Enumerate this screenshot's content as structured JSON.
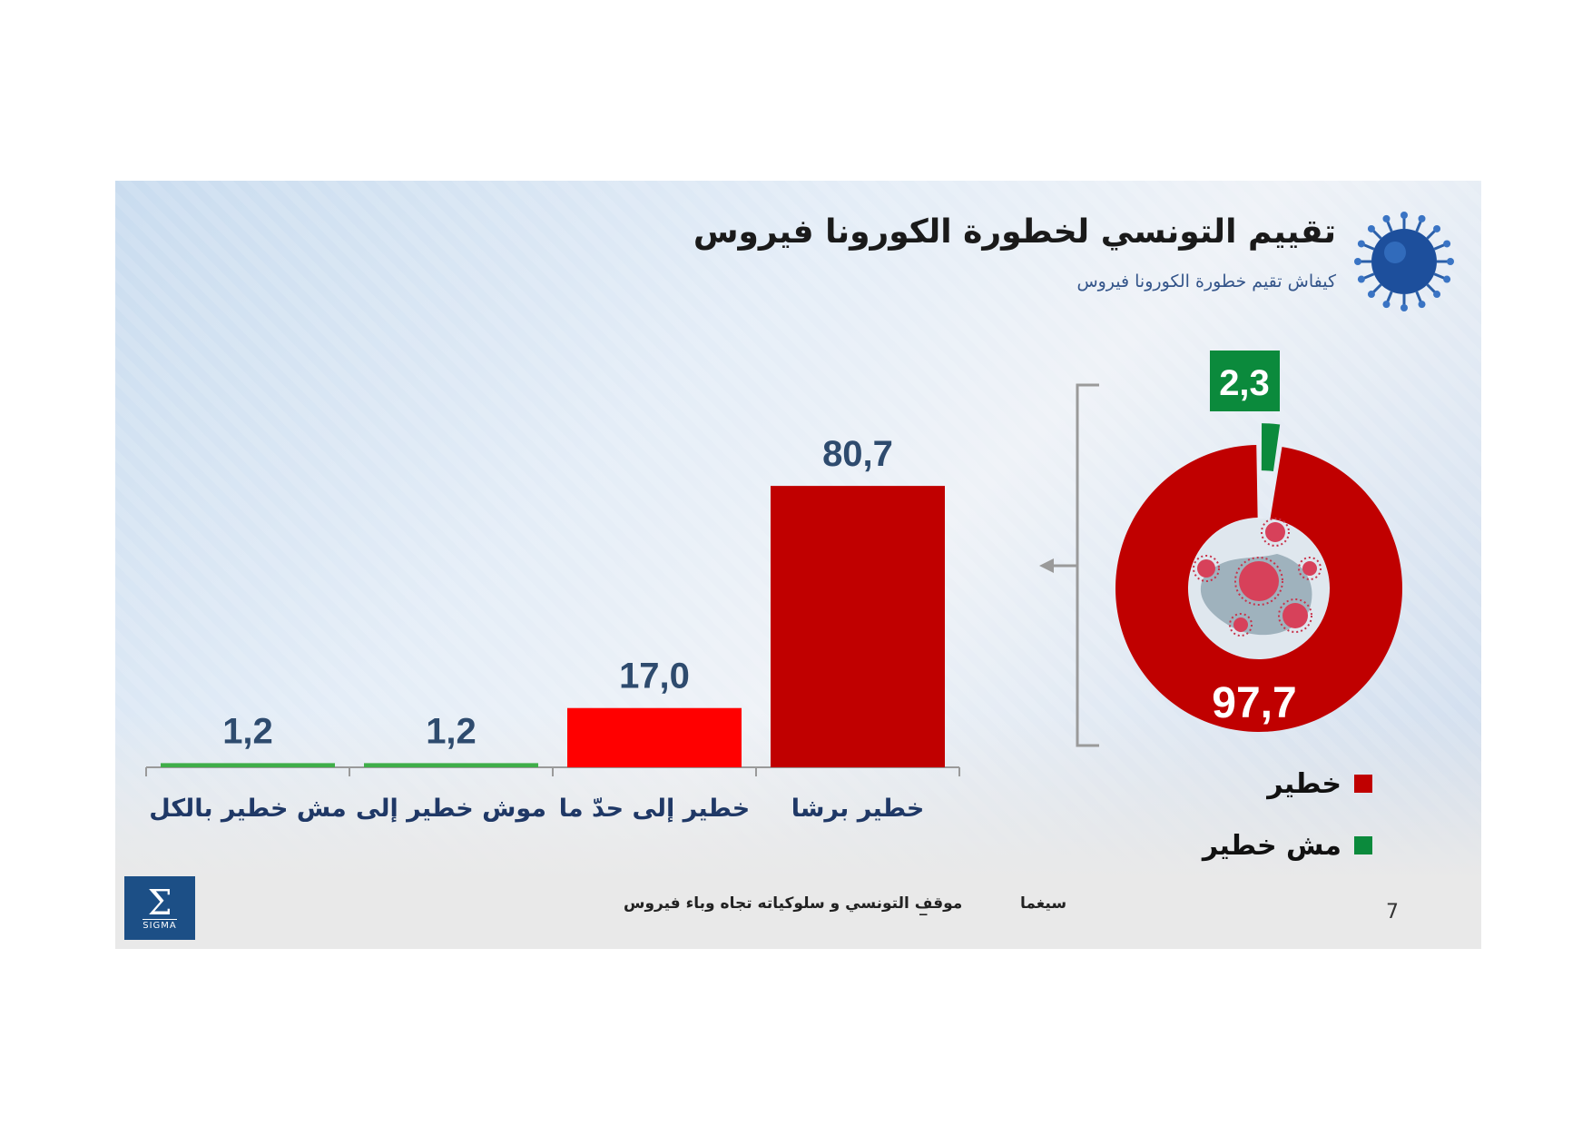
{
  "header": {
    "title": "تقييم التونسي لخطورة الكورونا فيروس",
    "subtitle": "كيفاش تقيم خطورة الكورونا فيروس"
  },
  "footer": {
    "brand": "سيغما",
    "separator": "_",
    "topic": "موقف التونسي و سلوكياته تجاه وباء فيروس",
    "page_number": "7",
    "logo_text": "SIGMA"
  },
  "icons": {
    "virus_header": "coronavirus-icon",
    "donut_center": "virus-illustration-icon",
    "logo": "sigma-logo-icon"
  },
  "colors": {
    "dark_red": "#c00000",
    "red": "#ff0000",
    "green": "#0b8a3c",
    "value_label": "#2e4b6e"
  },
  "chart_data": [
    {
      "type": "bar",
      "categories": [
        "خطير برشا",
        "خطير إلى حدّ ما",
        "موش خطير إلى",
        "مش خطير بالكل"
      ],
      "values": [
        80.7,
        17.0,
        1.2,
        1.2
      ],
      "value_labels": [
        "80,7",
        "17,0",
        "1,2",
        "1,2"
      ],
      "colors": [
        "#c00000",
        "#ff0000",
        "#3fae49",
        "#3fae49"
      ],
      "ylim": [
        0,
        100
      ],
      "grid": false
    },
    {
      "type": "pie",
      "donut": true,
      "labels": [
        "خطير",
        "مش خطير"
      ],
      "values": [
        97.7,
        2.3
      ],
      "value_labels": [
        "97,7",
        "2,3"
      ],
      "colors": [
        "#c00000",
        "#0b8a3c"
      ],
      "legend": "bottom-right"
    }
  ]
}
